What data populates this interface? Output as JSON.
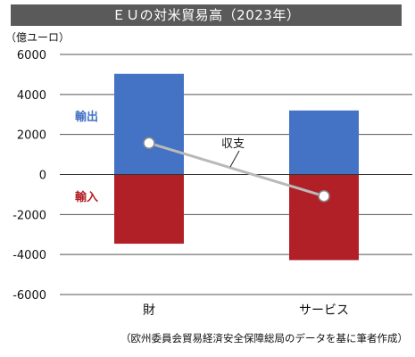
{
  "title": "ＥＵの対米貿易高（2023年）",
  "unit": "（億ユーロ）",
  "source": "（欧州委員会貿易経済安全保障総局のデータを基に筆者作成）",
  "colors": {
    "export": "#4472c4",
    "import": "#b22027",
    "balance_line": "#b9b9b9",
    "title_bg": "#5a5a5a"
  },
  "chart_data": {
    "type": "bar",
    "stacked": true,
    "categories": [
      "財",
      "サービス"
    ],
    "series": [
      {
        "name": "輸出",
        "values": [
          5030,
          3200
        ],
        "color": "#4472c4"
      },
      {
        "name": "輸入",
        "values": [
          -3460,
          -4280
        ],
        "color": "#b22027"
      }
    ],
    "line_series": {
      "name": "収支",
      "values": [
        1570,
        -1080
      ]
    },
    "ylim": [
      -6000,
      6000
    ],
    "yticks": [
      6000,
      4000,
      2000,
      0,
      -2000,
      -4000,
      -6000
    ],
    "grid": false
  }
}
